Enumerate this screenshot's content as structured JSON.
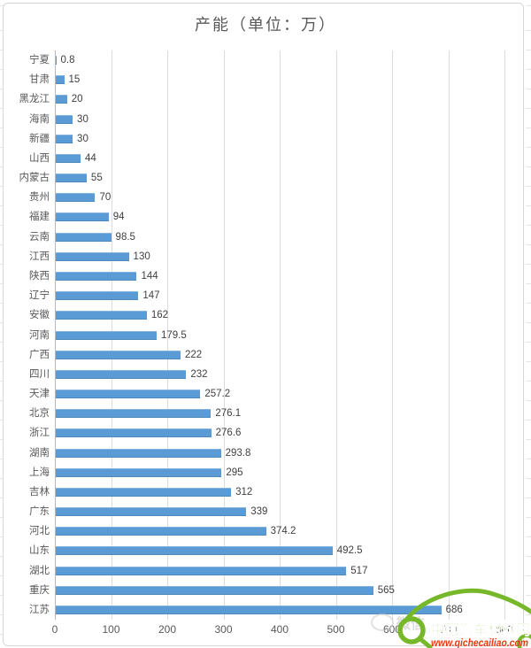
{
  "chart": {
    "bar_color": "#5b9bd5",
    "gridline_color": "#dcdcdc",
    "text_color": "#595959"
  },
  "chart_data": {
    "type": "bar",
    "orientation": "horizontal",
    "title": "产能（单位：万）",
    "categories": [
      "宁夏",
      "甘肃",
      "黑龙江",
      "海南",
      "新疆",
      "山西",
      "内蒙古",
      "贵州",
      "福建",
      "云南",
      "江西",
      "陕西",
      "辽宁",
      "安徽",
      "河南",
      "广西",
      "四川",
      "天津",
      "北京",
      "浙江",
      "湖南",
      "上海",
      "吉林",
      "广东",
      "河北",
      "山东",
      "湖北",
      "重庆",
      "江苏"
    ],
    "values": [
      0.8,
      15,
      20,
      30,
      30,
      44,
      55,
      70,
      94,
      98.5,
      130,
      144,
      147,
      162,
      179.5,
      222,
      232,
      257.2,
      276.1,
      276.6,
      293.8,
      295,
      312,
      339,
      374.2,
      492.5,
      517,
      565,
      686
    ],
    "value_labels": [
      "0.8",
      "15",
      "20",
      "30",
      "30",
      "44",
      "55",
      "70",
      "94",
      "98.5",
      "130",
      "144",
      "147",
      "162",
      "179.5",
      "222",
      "232",
      "257.2",
      "276.1",
      "276.6",
      "293.8",
      "295",
      "312",
      "339",
      "374.2",
      "492.5",
      "517",
      "565",
      "686"
    ],
    "xlabel": "",
    "ylabel": "",
    "xlim": [
      0,
      800
    ],
    "xticks": [
      "0",
      "100",
      "200",
      "300",
      "400",
      "500",
      "600",
      "700",
      "800"
    ],
    "grid": true,
    "legend": false
  },
  "watermark": {
    "ghost_text": "微信",
    "brand": "中国汽车材料网",
    "url": "www.qichecailiao.com",
    "brand_color": "#76b82a",
    "url_color": "#e8380d"
  }
}
